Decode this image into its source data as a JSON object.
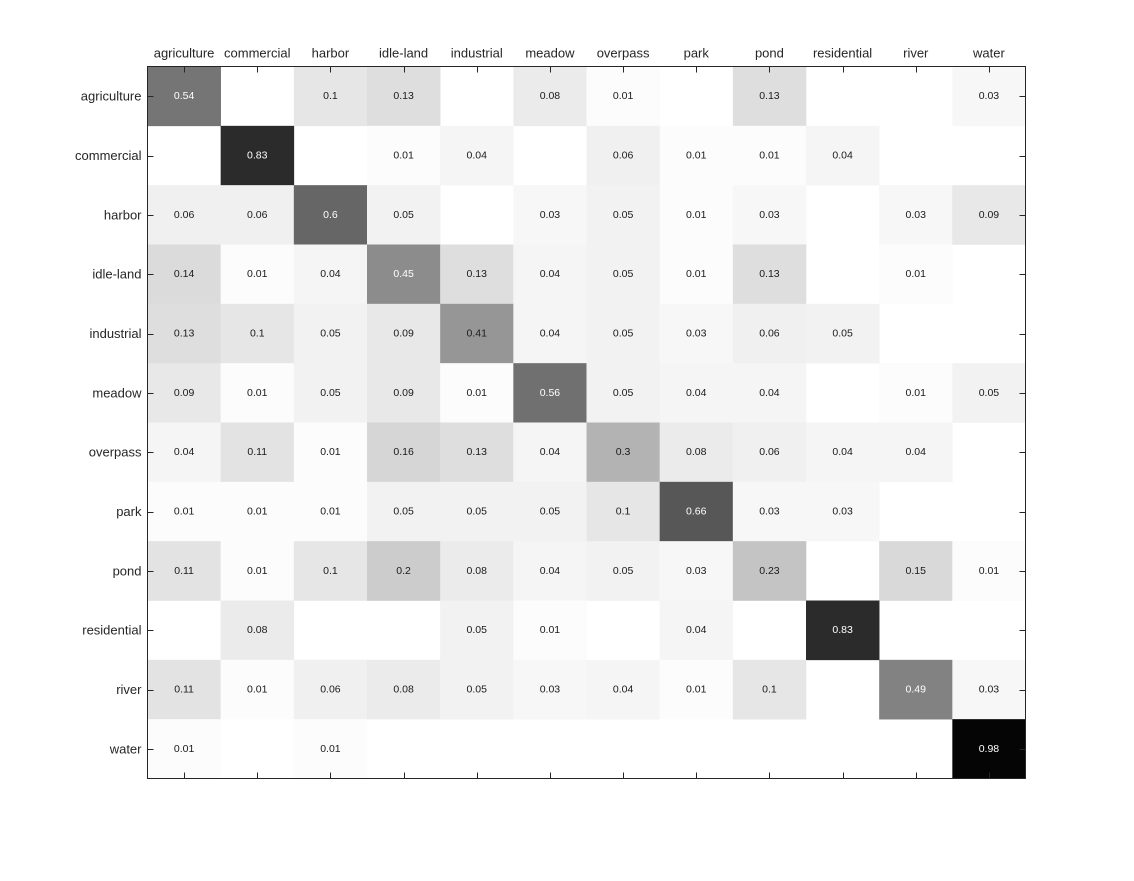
{
  "chart_data": {
    "type": "heatmap",
    "title": "",
    "xlabel": "",
    "ylabel": "",
    "x_categories": [
      "agriculture",
      "commercial",
      "harbor",
      "idle-land",
      "industrial",
      "meadow",
      "overpass",
      "park",
      "pond",
      "residential",
      "river",
      "water"
    ],
    "y_categories": [
      "agriculture",
      "commercial",
      "harbor",
      "idle-land",
      "industrial",
      "meadow",
      "overpass",
      "park",
      "pond",
      "residential",
      "river",
      "water"
    ],
    "x_axis_position": "top",
    "colormap": "gray-reversed",
    "value_range": [
      0,
      1
    ],
    "grid": false,
    "values": [
      [
        0.54,
        null,
        0.1,
        0.13,
        null,
        0.08,
        0.01,
        null,
        0.13,
        null,
        null,
        0.03
      ],
      [
        null,
        0.83,
        null,
        0.01,
        0.04,
        null,
        0.06,
        0.01,
        0.01,
        0.04,
        null,
        null
      ],
      [
        0.06,
        0.06,
        0.6,
        0.05,
        null,
        0.03,
        0.05,
        0.01,
        0.03,
        null,
        0.03,
        0.09
      ],
      [
        0.14,
        0.01,
        0.04,
        0.45,
        0.13,
        0.04,
        0.05,
        0.01,
        0.13,
        null,
        0.01,
        null
      ],
      [
        0.13,
        0.1,
        0.05,
        0.09,
        0.41,
        0.04,
        0.05,
        0.03,
        0.06,
        0.05,
        null,
        null
      ],
      [
        0.09,
        0.01,
        0.05,
        0.09,
        0.01,
        0.56,
        0.05,
        0.04,
        0.04,
        null,
        0.01,
        0.05
      ],
      [
        0.04,
        0.11,
        0.01,
        0.16,
        0.13,
        0.04,
        0.3,
        0.08,
        0.06,
        0.04,
        0.04,
        null
      ],
      [
        0.01,
        0.01,
        0.01,
        0.05,
        0.05,
        0.05,
        0.1,
        0.66,
        0.03,
        0.03,
        null,
        null
      ],
      [
        0.11,
        0.01,
        0.1,
        0.2,
        0.08,
        0.04,
        0.05,
        0.03,
        0.23,
        null,
        0.15,
        0.01
      ],
      [
        null,
        0.08,
        null,
        null,
        0.05,
        0.01,
        null,
        0.04,
        null,
        0.83,
        null,
        null
      ],
      [
        0.11,
        0.01,
        0.06,
        0.08,
        0.05,
        0.03,
        0.04,
        0.01,
        0.1,
        null,
        0.49,
        0.03
      ],
      [
        0.01,
        null,
        0.01,
        null,
        null,
        null,
        null,
        null,
        null,
        null,
        null,
        0.98
      ]
    ]
  }
}
